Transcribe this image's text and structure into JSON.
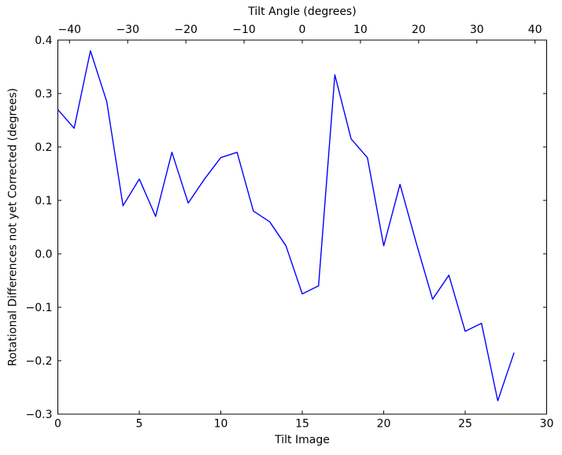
{
  "chart_data": {
    "type": "line",
    "grid": false,
    "legend": null,
    "background": "#ffffff",
    "top_axis": {
      "label": "Tilt Angle (degrees)",
      "lim": [
        -42,
        42
      ],
      "ticks": [
        -40,
        -30,
        -20,
        -10,
        0,
        10,
        20,
        30,
        40
      ],
      "tick_labels": [
        "−40",
        "−30",
        "−20",
        "−10",
        "0",
        "10",
        "20",
        "30",
        "40"
      ]
    },
    "bottom_axis": {
      "label": "Tilt Image",
      "lim": [
        0,
        30
      ],
      "ticks": [
        0,
        5,
        10,
        15,
        20,
        25,
        30
      ],
      "tick_labels": [
        "0",
        "5",
        "10",
        "15",
        "20",
        "25",
        "30"
      ]
    },
    "left_axis": {
      "label": "Rotational Differences not yet Corrected (degrees)",
      "lim": [
        -0.3,
        0.4
      ],
      "ticks": [
        0.4,
        0.3,
        0.2,
        0.1,
        0.0,
        -0.1,
        -0.2,
        -0.3
      ],
      "tick_labels": [
        "0.4",
        "0.3",
        "0.2",
        "0.1",
        "0.0",
        "−0.1",
        "−0.2",
        "−0.3"
      ]
    },
    "series": [
      {
        "name": "rotational_difference",
        "color": "#0000ff",
        "line_width": 1.4,
        "x": [
          0,
          1,
          2,
          3,
          4,
          5,
          6,
          7,
          8,
          9,
          10,
          11,
          12,
          13,
          14,
          15,
          16,
          17,
          18,
          19,
          20,
          21,
          22,
          23,
          24,
          25,
          26,
          27,
          28
        ],
        "y": [
          0.27,
          0.235,
          0.38,
          0.285,
          0.09,
          0.14,
          0.07,
          0.19,
          0.095,
          0.14,
          0.18,
          0.19,
          0.08,
          0.06,
          0.015,
          -0.075,
          -0.06,
          0.335,
          0.215,
          0.18,
          0.015,
          0.13,
          0.02,
          -0.085,
          -0.04,
          -0.145,
          -0.13,
          -0.275,
          -0.185
        ]
      }
    ]
  }
}
